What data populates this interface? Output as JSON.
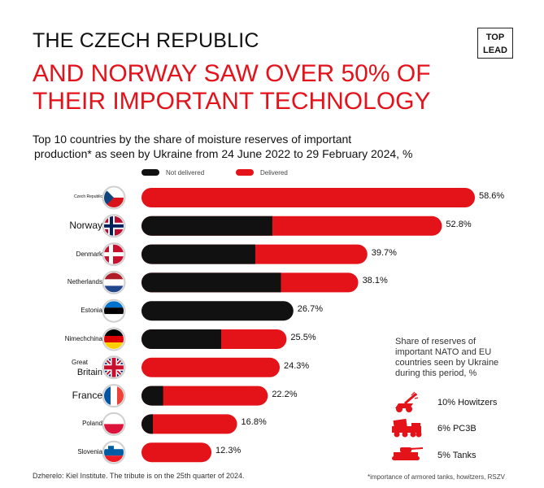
{
  "header": {
    "title_line1": "THE CZECH REPUBLIC",
    "title_line2": "AND NORWAY SAW OVER 50% OF THEIR IMPORTANT TECHNOLOGY",
    "logo_top": "TOP",
    "logo_bottom": "LEAD"
  },
  "subtitle": {
    "line1": "Top 10 countries by the share of moisture reserves of important",
    "line2": "production* as seen by Ukraine from 24 June 2022 to 29 February 2024, %"
  },
  "chart_data": {
    "type": "bar",
    "orientation": "horizontal",
    "stacked": true,
    "categories": [
      "Czech Republic",
      "Norway",
      "Denmark",
      "Netherlands",
      "Estonia",
      "Nimechchina",
      "Great Britain",
      "France",
      "Poland",
      "Slovenia"
    ],
    "series": [
      {
        "name": "Not delivered",
        "values": [
          0,
          23.0,
          20.0,
          24.5,
          26.7,
          14.0,
          0,
          3.8,
          2.0,
          0
        ]
      },
      {
        "name": "Delivered",
        "values": [
          58.6,
          29.8,
          19.7,
          13.6,
          0,
          11.5,
          24.3,
          18.4,
          14.8,
          12.3
        ]
      }
    ],
    "totals": [
      58.6,
      52.8,
      39.7,
      38.1,
      26.7,
      25.5,
      24.3,
      22.2,
      16.8,
      12.3
    ],
    "value_labels": [
      "58.6%",
      "52.8%",
      "39.7%",
      "38.1%",
      "26.7%",
      "25.5%",
      "24.3%",
      "22.2%",
      "16.8%",
      "12.3%"
    ],
    "xlim": [
      0,
      60
    ],
    "legend": [
      "Not delivered",
      "Delivered"
    ],
    "legend_position": "top",
    "colors": {
      "not_delivered": "#111111",
      "delivered": "#e41219"
    }
  },
  "countries": [
    {
      "label": "Czech Republic",
      "size": "tiny",
      "flag": "czech-flag"
    },
    {
      "label": "Norway",
      "size": "large",
      "flag": "norway-flag"
    },
    {
      "label": "Denmark",
      "size": "small",
      "flag": "denmark-flag"
    },
    {
      "label": "Netherlands",
      "size": "small",
      "flag": "netherlands-flag"
    },
    {
      "label": "Estonia",
      "size": "small",
      "flag": "estonia-flag"
    },
    {
      "label": "Nimechchina",
      "size": "small",
      "flag": "germany-flag"
    },
    {
      "label": "Great",
      "label2": "Britain",
      "size": "mixed",
      "flag": "uk-flag"
    },
    {
      "label": "France",
      "size": "large",
      "flag": "france-flag"
    },
    {
      "label": "Poland",
      "size": "small",
      "flag": "poland-flag"
    },
    {
      "label": "Slovenia",
      "size": "small",
      "flag": "slovenia-flag"
    }
  ],
  "side_panel": {
    "title": "Share of reserves of important NATO and EU countries seen by Ukraine during this period, %",
    "items": [
      {
        "label": "10% Howitzers",
        "icon": "howitzer-icon"
      },
      {
        "label": "6% PC3B",
        "icon": "rocket-launcher-icon"
      },
      {
        "label": "5% Tanks",
        "icon": "tank-icon"
      }
    ]
  },
  "footer": {
    "source": "Dzherelo: Kiel Institute. The tribute is on the 25th quarter of 2024.",
    "note": "*importance of armored tanks, howitzers, RSZV"
  }
}
